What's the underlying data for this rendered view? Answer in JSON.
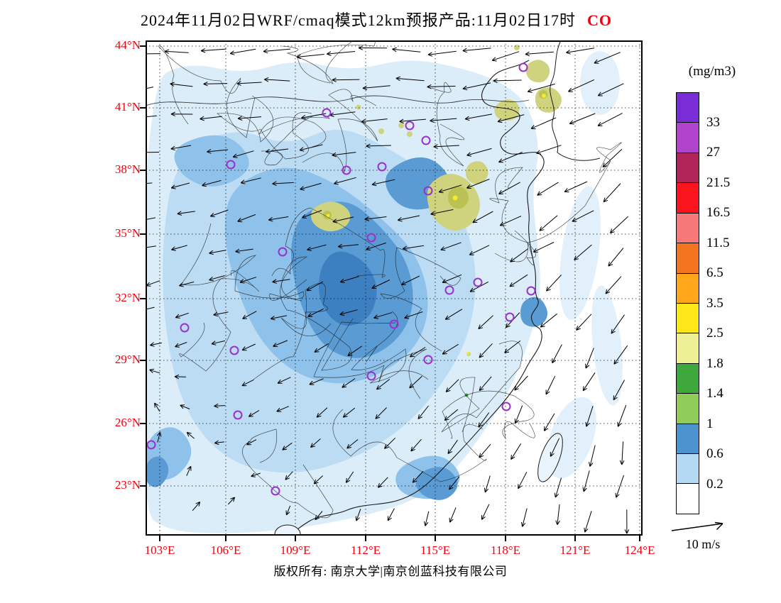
{
  "title": {
    "main": "2024年11月02日WRF/cmaq模式12km预报产品:11月02日17时",
    "species": "CO",
    "species_color": "#f2000e"
  },
  "axes": {
    "lat_ticks": [
      "44°N",
      "41°N",
      "38°N",
      "35°N",
      "32°N",
      "29°N",
      "26°N",
      "23°N"
    ],
    "lon_ticks": [
      "103°E",
      "106°E",
      "109°E",
      "112°E",
      "115°E",
      "118°E",
      "121°E",
      "124°E"
    ],
    "tick_color": "#f2000e"
  },
  "legend": {
    "units": "(mg/m3)",
    "labels": [
      "33",
      "27",
      "21.5",
      "16.5",
      "11.5",
      "6.5",
      "3.5",
      "2.5",
      "1.8",
      "1.4",
      "1",
      "0.6",
      "0.2"
    ],
    "colors_top_to_bottom": [
      "#7a2cd6",
      "#b044cc",
      "#b02458",
      "#fa141e",
      "#f67878",
      "#f2741e",
      "#ffa61a",
      "#ffe81a",
      "#eef096",
      "#3ea83c",
      "#8fcc5a",
      "#4b94d0",
      "#b4d9f2",
      "#ffffff"
    ]
  },
  "wind_scale": {
    "label": "10 m/s"
  },
  "footer": {
    "copyright": "版权所有: 南京大学|南京创蓝科技有限公司"
  },
  "map_palette": {
    "pale_blue": "#dcedfa",
    "light_blue": "#bcdcf4",
    "mid_blue": "#8fc2ea",
    "steel_blue": "#5a9bd4",
    "deep_blue": "#3c80c2",
    "khaki": "#cfd37e",
    "khaki_dark": "#b9c252",
    "yellow": "#f7ea2e",
    "green": "#3ea83c",
    "marker": "#9932cc",
    "line": "#1a1a1a",
    "grid": "#111111"
  },
  "chart_data": {
    "type": "heatmap",
    "title": "2024年11月02日WRF/cmaq模式12km预报产品:11月02日17时 CO",
    "variable": "CO",
    "units": "mg/m3",
    "model": "WRF/cmaq模式12km",
    "valid_time": "11月02日17时",
    "x": {
      "label": "longitude",
      "ticks": [
        "103°E",
        "106°E",
        "109°E",
        "112°E",
        "115°E",
        "118°E",
        "121°E",
        "124°E"
      ],
      "range_deg": [
        103,
        124
      ]
    },
    "y": {
      "label": "latitude",
      "ticks": [
        "23°N",
        "26°N",
        "29°N",
        "32°N",
        "35°N",
        "38°N",
        "41°N",
        "44°N"
      ],
      "range_deg": [
        23,
        44
      ]
    },
    "color_scale": {
      "boundary_levels": [
        0.2,
        0.6,
        1,
        1.4,
        1.8,
        2.5,
        3.5,
        6.5,
        11.5,
        16.5,
        21.5,
        27,
        33
      ],
      "colors_low_to_high": [
        "#ffffff",
        "#b4d9f2",
        "#4b94d0",
        "#8fcc5a",
        "#3ea83c",
        "#eef096",
        "#ffe81a",
        "#ffa61a",
        "#f2741e",
        "#f67878",
        "#fa141e",
        "#b02458",
        "#b044cc",
        "#7a2cd6"
      ]
    },
    "overlays": [
      "wind vectors",
      "station circle markers",
      "province and coastline boundaries",
      "dotted lat-lon grid"
    ],
    "wind_reference_ms": 10,
    "legend_position": "right",
    "notes": "CO concentration mostly 0.2–1 mg/m3 (blues) over eastern China; patches of 1–3.5 mg/m3 (khaki/yellow) near 36–40N,112–118E and northeast; seas mostly < 0.2 mg/m3 (white)."
  }
}
